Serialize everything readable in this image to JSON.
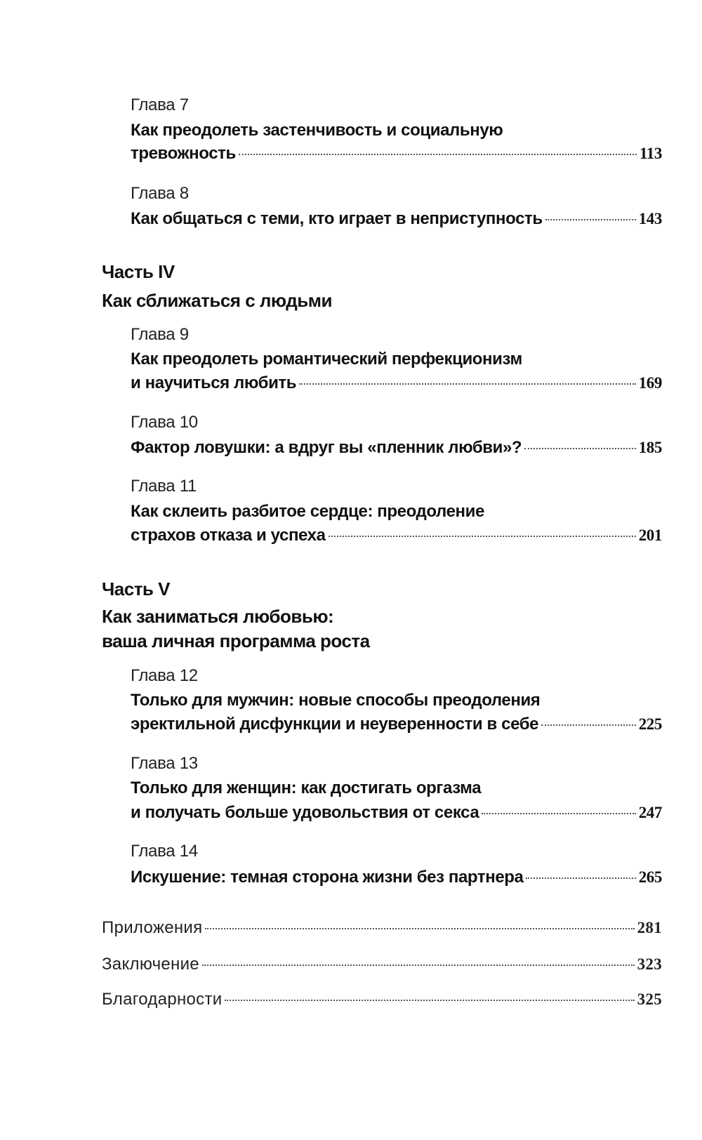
{
  "chapters_top": [
    {
      "label": "Глава 7",
      "lines": [
        "Как преодолеть застенчивость и социальную",
        "тревожность"
      ],
      "page": "113"
    },
    {
      "label": "Глава 8",
      "lines": [
        "Как общаться с теми, кто играет в неприступность"
      ],
      "page": "143"
    }
  ],
  "part4": {
    "label": "Часть IV",
    "title": "Как сближаться с людьми",
    "chapters": [
      {
        "label": "Глава 9",
        "lines": [
          "Как преодолеть романтический перфекционизм",
          "и научиться любить"
        ],
        "page": "169"
      },
      {
        "label": "Глава 10",
        "lines": [
          "Фактор ловушки: а вдруг вы «пленник любви»?"
        ],
        "page": "185"
      },
      {
        "label": "Глава 11",
        "lines": [
          "Как склеить разбитое сердце: преодоление",
          "страхов отказа и успеха"
        ],
        "page": "201"
      }
    ]
  },
  "part5": {
    "label": "Часть V",
    "title_lines": [
      "Как заниматься любовью:",
      "ваша личная программа роста"
    ],
    "chapters": [
      {
        "label": "Глава 12",
        "lines": [
          "Только для мужчин: новые способы преодоления",
          "эректильной дисфункции и неуверенности в себе"
        ],
        "page": "225"
      },
      {
        "label": "Глава 13",
        "lines": [
          "Только для женщин: как достигать оргазма",
          "и получать больше удовольствия от секса"
        ],
        "page": "247"
      },
      {
        "label": "Глава 14",
        "lines": [
          "Искушение: темная сторона жизни без партнера"
        ],
        "page": "265"
      }
    ]
  },
  "back_matter": [
    {
      "title": "Приложения",
      "page": "281"
    },
    {
      "title": "Заключение",
      "page": "323"
    },
    {
      "title": "Благодарности",
      "page": "325"
    }
  ]
}
